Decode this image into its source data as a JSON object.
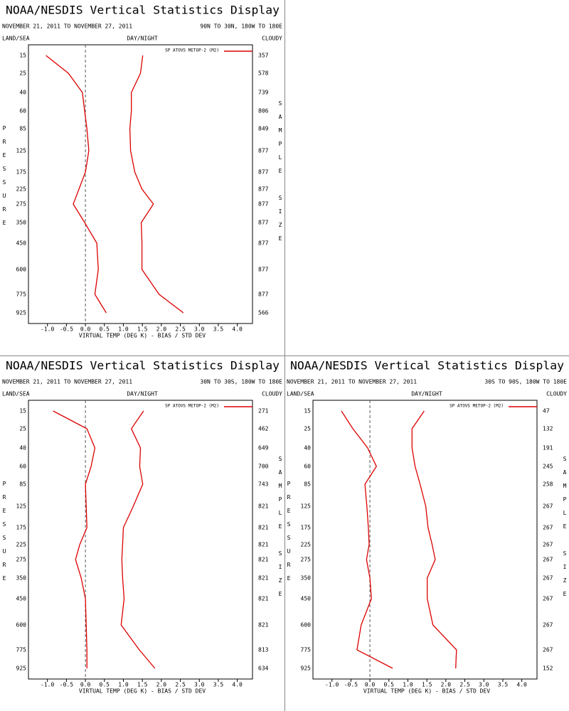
{
  "chart_data": [
    {
      "type": "line",
      "title": "NOAA/NESDIS Vertical Statistics Display",
      "date_range": "NOVEMBER 21, 2011 TO NOVEMBER 27, 2011",
      "region": "90N TO 30N, 180W TO 180E",
      "left_header": "LAND/SEA",
      "center_header": "DAY/NIGHT",
      "right_header": "CLOUDY",
      "x_label": "VIRTUAL TEMP (DEG K) - BIAS / STD DEV",
      "y_label": "PRESSURE",
      "y2_label": "SAMPLE SIZE",
      "categories": [
        15,
        25,
        40,
        60,
        85,
        125,
        175,
        225,
        275,
        350,
        450,
        600,
        775,
        925
      ],
      "sample_size": [
        357,
        578,
        739,
        806,
        849,
        877,
        877,
        877,
        877,
        877,
        877,
        877,
        877,
        566
      ],
      "series": [
        {
          "name": "SP ATOVS METOP-2 (M2)",
          "color": "#dd0000",
          "bias": [
            -1.04,
            -0.45,
            -0.08,
            -0.02,
            0.04,
            0.09,
            0.0,
            -0.17,
            -0.32,
            -0.02,
            0.3,
            0.34,
            0.25,
            0.55
          ],
          "std_dev": [
            1.51,
            1.45,
            1.21,
            1.21,
            1.17,
            1.19,
            1.3,
            1.49,
            1.79,
            1.47,
            1.49,
            1.49,
            1.94,
            2.58
          ]
        }
      ],
      "xlim": [
        -1.5,
        4.4
      ],
      "xticks": [
        {
          "value": -1,
          "label": "-1.0"
        },
        {
          "value": -0.5,
          "label": "-0.5"
        },
        {
          "value": 0,
          "label": "0.0"
        },
        0.5,
        {
          "value": 1,
          "label": "1.0"
        },
        1.5,
        {
          "value": 2,
          "label": "2.0"
        },
        2.5,
        {
          "value": 3,
          "label": "3.0"
        },
        3.5,
        {
          "value": 4,
          "label": "4.0"
        }
      ]
    },
    {
      "type": "line",
      "title": "NOAA/NESDIS Vertical Statistics Display",
      "date_range": "NOVEMBER 21, 2011 TO NOVEMBER 27, 2011",
      "region": "30N TO 30S, 180W TO 180E",
      "left_header": "LAND/SEA",
      "center_header": "DAY/NIGHT",
      "right_header": "CLOUDY",
      "x_label": "VIRTUAL TEMP (DEG K) - BIAS / STD DEV",
      "y_label": "PRESSURE",
      "y2_label": "SAMPLE SIZE",
      "categories": [
        15,
        25,
        40,
        60,
        85,
        125,
        175,
        225,
        275,
        350,
        450,
        600,
        775,
        925
      ],
      "sample_size": [
        271,
        462,
        649,
        700,
        743,
        821,
        821,
        821,
        821,
        821,
        821,
        821,
        813,
        634
      ],
      "series": [
        {
          "name": "SP ATOVS METOP-2 (M2)",
          "color": "#dd0000",
          "bias": [
            -0.85,
            0.04,
            0.25,
            0.15,
            0.0,
            0.02,
            0.04,
            -0.15,
            -0.26,
            -0.11,
            0.0,
            0.02,
            0.04,
            0.04
          ],
          "std_dev": [
            1.53,
            1.21,
            1.45,
            1.43,
            1.51,
            1.26,
            1.0,
            0.98,
            0.96,
            0.98,
            1.02,
            0.94,
            1.42,
            1.83
          ]
        }
      ],
      "xlim": [
        -1.5,
        4.4
      ],
      "xticks": [
        {
          "value": -1,
          "label": "-1.0"
        },
        {
          "value": -0.5,
          "label": "-0.5"
        },
        {
          "value": 0,
          "label": "0.0"
        },
        0.5,
        {
          "value": 1,
          "label": "1.0"
        },
        1.5,
        {
          "value": 2,
          "label": "2.0"
        },
        2.5,
        {
          "value": 3,
          "label": "3.0"
        },
        3.5,
        {
          "value": 4,
          "label": "4.0"
        }
      ]
    },
    {
      "type": "line",
      "title": "NOAA/NESDIS Vertical Statistics Display",
      "date_range": "NOVEMBER 21, 2011 TO NOVEMBER 27, 2011",
      "region": "30S TO 90S, 180W TO 180E",
      "left_header": "LAND/SEA",
      "center_header": "DAY/NIGHT",
      "right_header": "CLOUDY",
      "x_label": "VIRTUAL TEMP (DEG K) - BIAS / STD DEV",
      "y_label": "PRESSURE",
      "y2_label": "SAMPLE SIZE",
      "categories": [
        15,
        25,
        40,
        60,
        85,
        125,
        175,
        225,
        275,
        350,
        450,
        600,
        775,
        925
      ],
      "sample_size": [
        47,
        132,
        191,
        245,
        258,
        267,
        267,
        267,
        267,
        267,
        267,
        267,
        267,
        152
      ],
      "series": [
        {
          "name": "SP ATOVS METOP-2 (M2)",
          "color": "#dd0000",
          "bias": [
            -0.75,
            -0.45,
            -0.06,
            0.17,
            -0.13,
            -0.08,
            -0.04,
            -0.02,
            -0.09,
            0.0,
            0.04,
            -0.23,
            -0.34,
            0.6
          ],
          "std_dev": [
            1.43,
            1.11,
            1.11,
            1.19,
            1.32,
            1.47,
            1.53,
            1.64,
            1.72,
            1.51,
            1.51,
            1.66,
            2.28,
            2.26
          ]
        }
      ],
      "xlim": [
        -1.5,
        4.4
      ],
      "xticks": [
        {
          "value": -1,
          "label": "-1.0"
        },
        {
          "value": -0.5,
          "label": "-0.5"
        },
        {
          "value": 0,
          "label": "0.0"
        },
        0.5,
        {
          "value": 1,
          "label": "1.0"
        },
        1.5,
        {
          "value": 2,
          "label": "2.0"
        },
        2.5,
        {
          "value": 3,
          "label": "3.0"
        },
        3.5,
        {
          "value": 4,
          "label": "4.0"
        }
      ]
    }
  ]
}
